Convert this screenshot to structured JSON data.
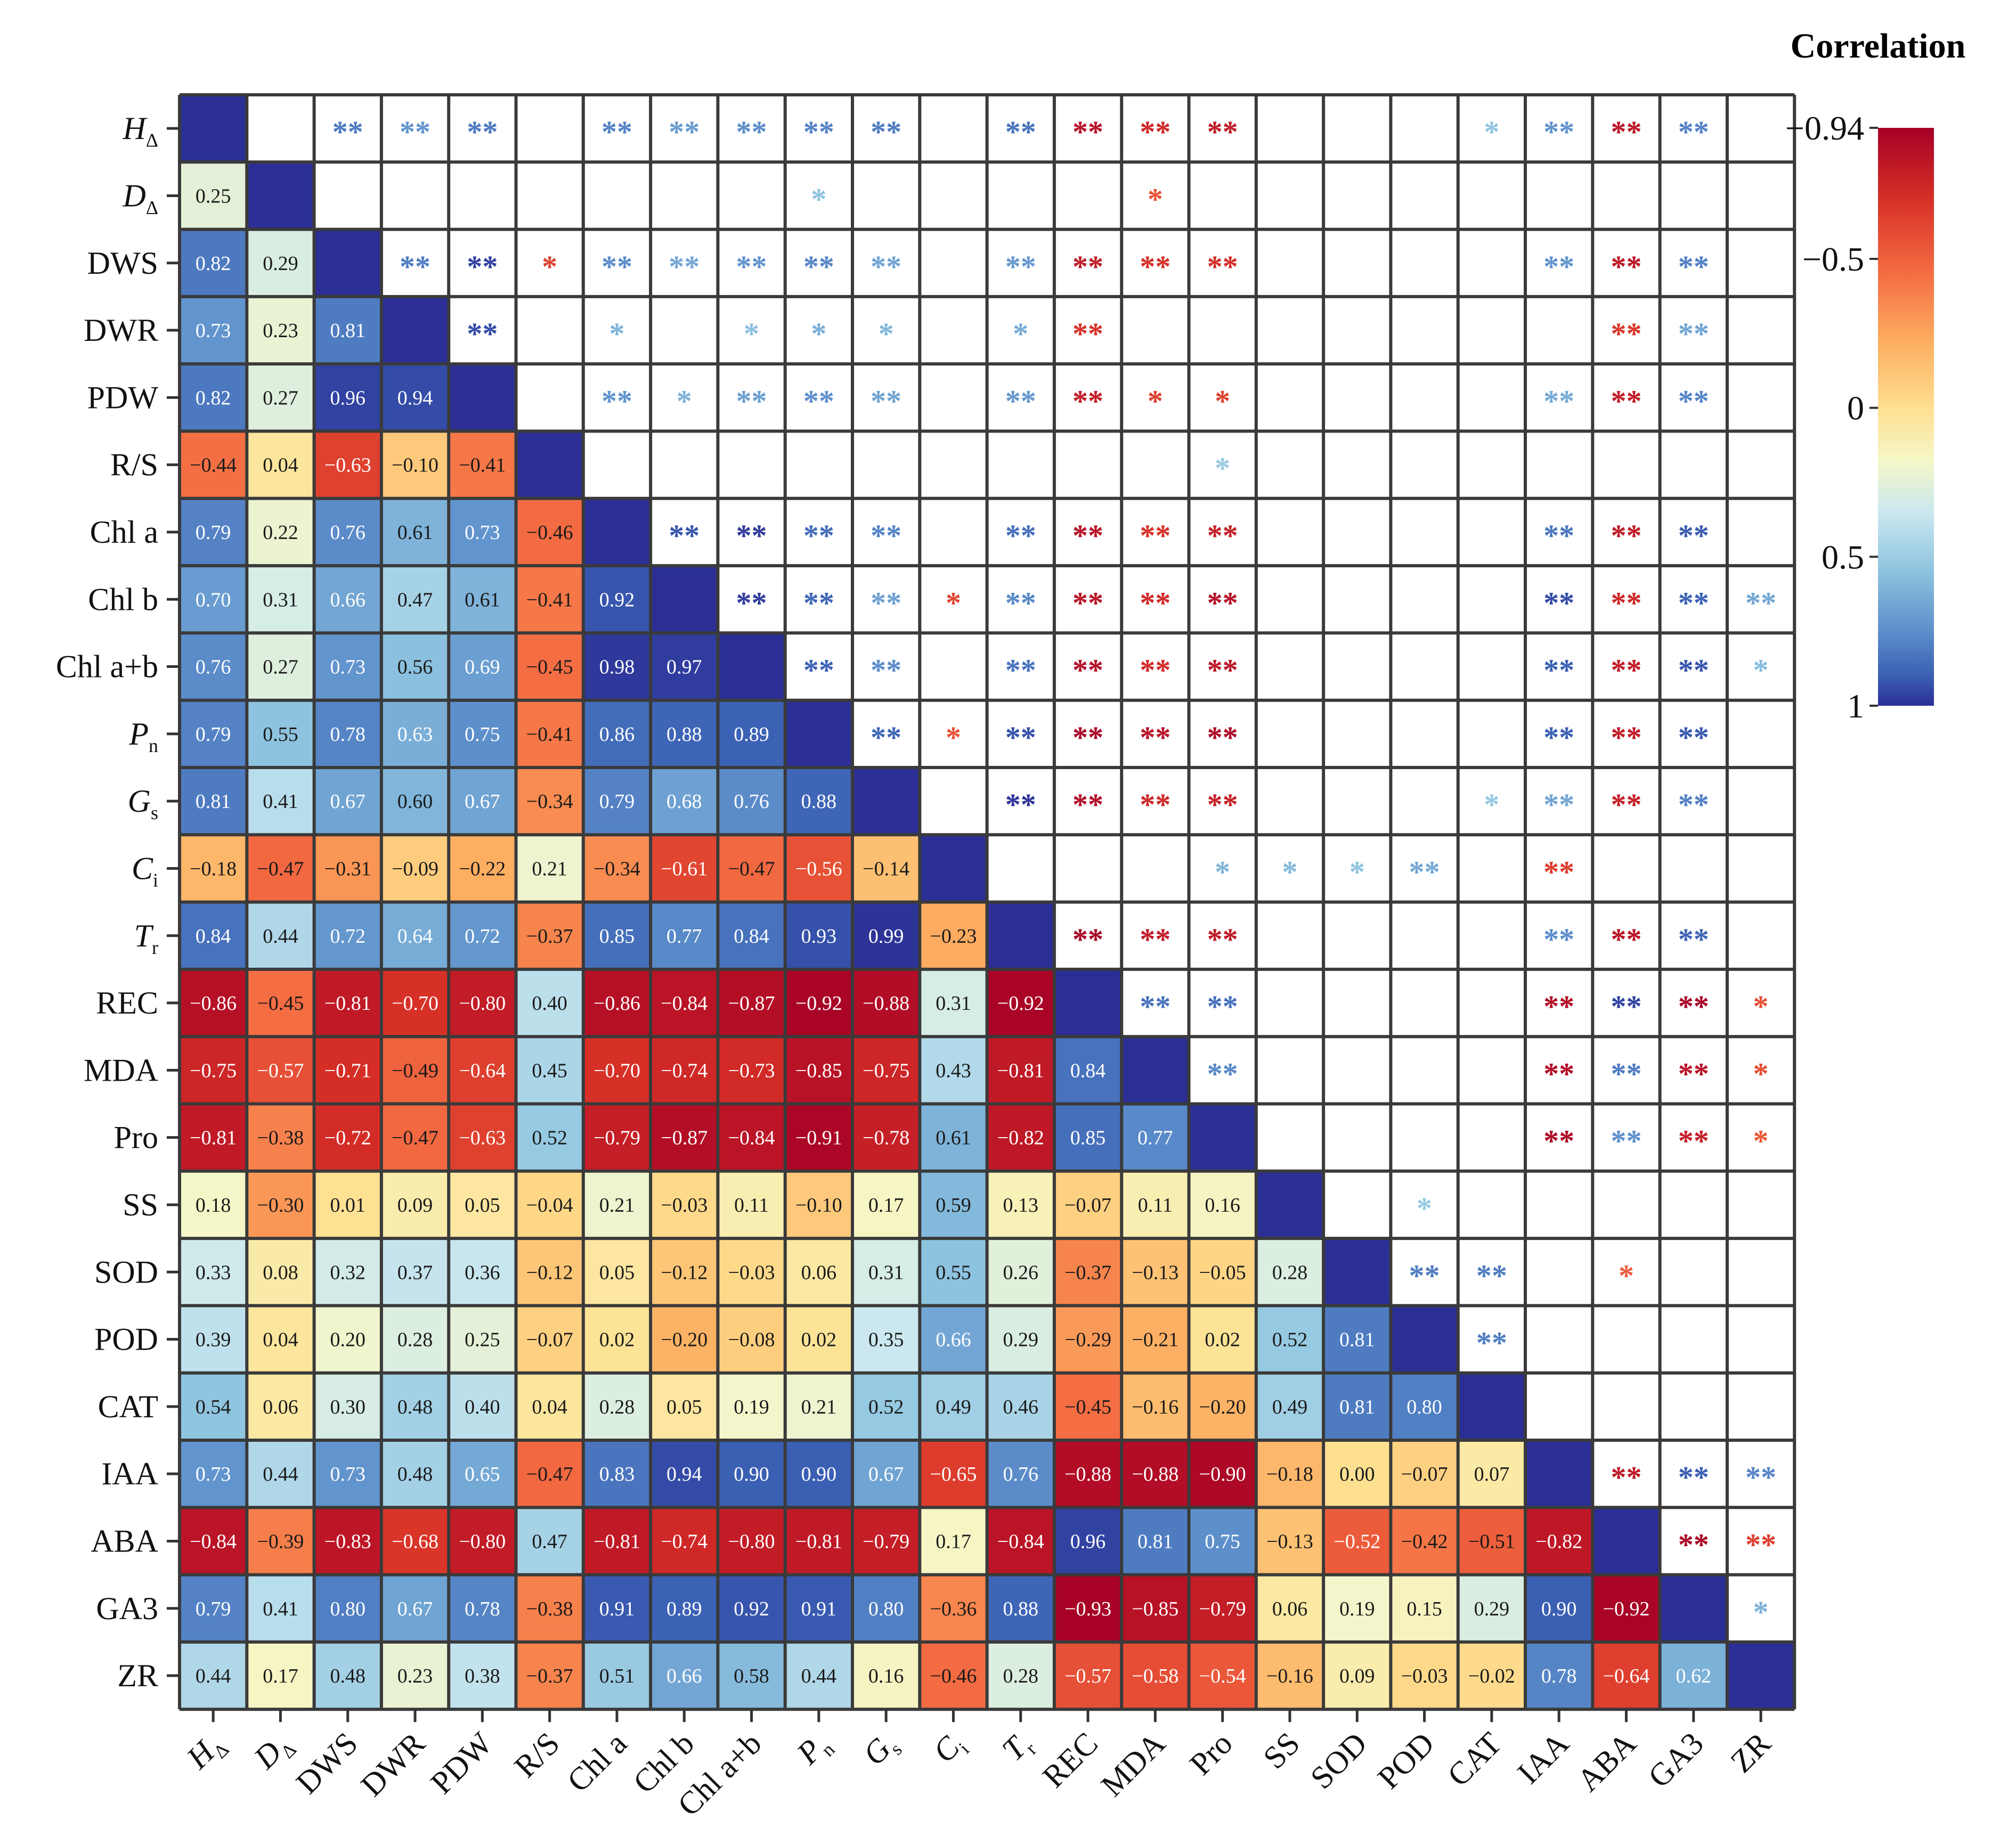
{
  "chart_data": {
    "type": "heatmap",
    "title": "",
    "variables": [
      {
        "base": "H",
        "sub": "Δ",
        "italic": true
      },
      {
        "base": "D",
        "sub": "Δ",
        "italic": true
      },
      {
        "base": "DWS",
        "sub": "",
        "italic": false
      },
      {
        "base": "DWR",
        "sub": "",
        "italic": false
      },
      {
        "base": "PDW",
        "sub": "",
        "italic": false
      },
      {
        "base": "R/S",
        "sub": "",
        "italic": false
      },
      {
        "base": "Chl a",
        "sub": "",
        "italic": false
      },
      {
        "base": "Chl b",
        "sub": "",
        "italic": false
      },
      {
        "base": "Chl a+b",
        "sub": "",
        "italic": false
      },
      {
        "base": "P",
        "sub": "n",
        "italic": true
      },
      {
        "base": "G",
        "sub": "s",
        "italic": true
      },
      {
        "base": "C",
        "sub": "i",
        "italic": true
      },
      {
        "base": "T",
        "sub": "r",
        "italic": true
      },
      {
        "base": "REC",
        "sub": "",
        "italic": false
      },
      {
        "base": "MDA",
        "sub": "",
        "italic": false
      },
      {
        "base": "Pro",
        "sub": "",
        "italic": false
      },
      {
        "base": "SS",
        "sub": "",
        "italic": false
      },
      {
        "base": "SOD",
        "sub": "",
        "italic": false
      },
      {
        "base": "POD",
        "sub": "",
        "italic": false
      },
      {
        "base": "CAT",
        "sub": "",
        "italic": false
      },
      {
        "base": "IAA",
        "sub": "",
        "italic": false
      },
      {
        "base": "ABA",
        "sub": "",
        "italic": false
      },
      {
        "base": "GA3",
        "sub": "",
        "italic": false
      },
      {
        "base": "ZR",
        "sub": "",
        "italic": false
      }
    ],
    "lower_values": [
      [],
      [
        0.25
      ],
      [
        0.82,
        0.29
      ],
      [
        0.73,
        0.23,
        0.81
      ],
      [
        0.82,
        0.27,
        0.96,
        0.94
      ],
      [
        -0.44,
        0.04,
        -0.63,
        -0.1,
        -0.41
      ],
      [
        0.79,
        0.22,
        0.76,
        0.61,
        0.73,
        -0.46
      ],
      [
        0.7,
        0.31,
        0.66,
        0.47,
        0.61,
        -0.41,
        0.92
      ],
      [
        0.76,
        0.27,
        0.73,
        0.56,
        0.69,
        -0.45,
        0.98,
        0.97
      ],
      [
        0.79,
        0.55,
        0.78,
        0.63,
        0.75,
        -0.41,
        0.86,
        0.88,
        0.89
      ],
      [
        0.81,
        0.41,
        0.67,
        0.6,
        0.67,
        -0.34,
        0.79,
        0.68,
        0.76,
        0.88
      ],
      [
        -0.18,
        -0.47,
        -0.31,
        -0.09,
        -0.22,
        0.21,
        -0.34,
        -0.61,
        -0.47,
        -0.56,
        -0.14
      ],
      [
        0.84,
        0.44,
        0.72,
        0.64,
        0.72,
        -0.37,
        0.85,
        0.77,
        0.84,
        0.93,
        0.99,
        -0.23
      ],
      [
        -0.86,
        -0.45,
        -0.81,
        -0.7,
        -0.8,
        0.4,
        -0.86,
        -0.84,
        -0.87,
        -0.92,
        -0.88,
        0.31,
        -0.92
      ],
      [
        -0.75,
        -0.57,
        -0.71,
        -0.49,
        -0.64,
        0.45,
        -0.7,
        -0.74,
        -0.73,
        -0.85,
        -0.75,
        0.43,
        -0.81,
        0.84
      ],
      [
        -0.81,
        -0.38,
        -0.72,
        -0.47,
        -0.63,
        0.52,
        -0.79,
        -0.87,
        -0.84,
        -0.91,
        -0.78,
        0.61,
        -0.82,
        0.85,
        0.77
      ],
      [
        0.18,
        -0.3,
        0.01,
        0.09,
        0.05,
        -0.04,
        0.21,
        -0.03,
        0.11,
        -0.1,
        0.17,
        0.59,
        0.13,
        -0.07,
        0.11,
        0.16
      ],
      [
        0.33,
        0.08,
        0.32,
        0.37,
        0.36,
        -0.12,
        0.05,
        -0.12,
        -0.03,
        0.06,
        0.31,
        0.55,
        0.26,
        -0.37,
        -0.13,
        -0.05,
        0.28
      ],
      [
        0.39,
        0.04,
        0.2,
        0.28,
        0.25,
        -0.07,
        0.02,
        -0.2,
        -0.08,
        0.02,
        0.35,
        0.66,
        0.29,
        -0.29,
        -0.21,
        0.02,
        0.52,
        0.81
      ],
      [
        0.54,
        0.06,
        0.3,
        0.48,
        0.4,
        0.04,
        0.28,
        0.05,
        0.19,
        0.21,
        0.52,
        0.49,
        0.46,
        -0.45,
        -0.16,
        -0.2,
        0.49,
        0.81,
        0.8
      ],
      [
        0.73,
        0.44,
        0.73,
        0.48,
        0.65,
        -0.47,
        0.83,
        0.94,
        0.9,
        0.9,
        0.67,
        -0.65,
        0.76,
        -0.88,
        -0.88,
        -0.9,
        -0.18,
        0.0,
        -0.07,
        0.07
      ],
      [
        -0.84,
        -0.39,
        -0.83,
        -0.68,
        -0.8,
        0.47,
        -0.81,
        -0.74,
        -0.8,
        -0.81,
        -0.79,
        0.17,
        -0.84,
        0.96,
        0.81,
        0.75,
        -0.13,
        -0.52,
        -0.42,
        -0.51,
        -0.82
      ],
      [
        0.79,
        0.41,
        0.8,
        0.67,
        0.78,
        -0.38,
        0.91,
        0.89,
        0.92,
        0.91,
        0.8,
        -0.36,
        0.88,
        -0.93,
        -0.85,
        -0.79,
        0.06,
        0.19,
        0.15,
        0.29,
        0.9,
        -0.92
      ],
      [
        0.44,
        0.17,
        0.48,
        0.23,
        0.38,
        -0.37,
        0.51,
        0.66,
        0.58,
        0.44,
        0.16,
        -0.46,
        0.28,
        -0.57,
        -0.58,
        -0.54,
        -0.16,
        0.09,
        -0.03,
        -0.02,
        0.78,
        -0.64,
        0.62
      ]
    ],
    "significance_upper": [
      {
        "row": 0,
        "col": 2,
        "mark": "**"
      },
      {
        "row": 0,
        "col": 3,
        "mark": "**"
      },
      {
        "row": 0,
        "col": 4,
        "mark": "**"
      },
      {
        "row": 0,
        "col": 6,
        "mark": "**"
      },
      {
        "row": 0,
        "col": 7,
        "mark": "**"
      },
      {
        "row": 0,
        "col": 8,
        "mark": "**"
      },
      {
        "row": 0,
        "col": 9,
        "mark": "**"
      },
      {
        "row": 0,
        "col": 10,
        "mark": "**"
      },
      {
        "row": 0,
        "col": 12,
        "mark": "**"
      },
      {
        "row": 0,
        "col": 13,
        "mark": "**"
      },
      {
        "row": 0,
        "col": 14,
        "mark": "**"
      },
      {
        "row": 0,
        "col": 15,
        "mark": "**"
      },
      {
        "row": 0,
        "col": 19,
        "mark": "*"
      },
      {
        "row": 0,
        "col": 20,
        "mark": "**"
      },
      {
        "row": 0,
        "col": 21,
        "mark": "**"
      },
      {
        "row": 0,
        "col": 22,
        "mark": "**"
      },
      {
        "row": 1,
        "col": 9,
        "mark": "*"
      },
      {
        "row": 1,
        "col": 14,
        "mark": "*"
      },
      {
        "row": 2,
        "col": 3,
        "mark": "**"
      },
      {
        "row": 2,
        "col": 4,
        "mark": "**"
      },
      {
        "row": 2,
        "col": 5,
        "mark": "*"
      },
      {
        "row": 2,
        "col": 6,
        "mark": "**"
      },
      {
        "row": 2,
        "col": 7,
        "mark": "**"
      },
      {
        "row": 2,
        "col": 8,
        "mark": "**"
      },
      {
        "row": 2,
        "col": 9,
        "mark": "**"
      },
      {
        "row": 2,
        "col": 10,
        "mark": "**"
      },
      {
        "row": 2,
        "col": 12,
        "mark": "**"
      },
      {
        "row": 2,
        "col": 13,
        "mark": "**"
      },
      {
        "row": 2,
        "col": 14,
        "mark": "**"
      },
      {
        "row": 2,
        "col": 15,
        "mark": "**"
      },
      {
        "row": 2,
        "col": 20,
        "mark": "**"
      },
      {
        "row": 2,
        "col": 21,
        "mark": "**"
      },
      {
        "row": 2,
        "col": 22,
        "mark": "**"
      },
      {
        "row": 3,
        "col": 4,
        "mark": "**"
      },
      {
        "row": 3,
        "col": 6,
        "mark": "*"
      },
      {
        "row": 3,
        "col": 8,
        "mark": "*"
      },
      {
        "row": 3,
        "col": 9,
        "mark": "*"
      },
      {
        "row": 3,
        "col": 10,
        "mark": "*"
      },
      {
        "row": 3,
        "col": 12,
        "mark": "*"
      },
      {
        "row": 3,
        "col": 13,
        "mark": "**"
      },
      {
        "row": 3,
        "col": 21,
        "mark": "**"
      },
      {
        "row": 3,
        "col": 22,
        "mark": "**"
      },
      {
        "row": 4,
        "col": 6,
        "mark": "**"
      },
      {
        "row": 4,
        "col": 7,
        "mark": "*"
      },
      {
        "row": 4,
        "col": 8,
        "mark": "**"
      },
      {
        "row": 4,
        "col": 9,
        "mark": "**"
      },
      {
        "row": 4,
        "col": 10,
        "mark": "**"
      },
      {
        "row": 4,
        "col": 12,
        "mark": "**"
      },
      {
        "row": 4,
        "col": 13,
        "mark": "**"
      },
      {
        "row": 4,
        "col": 14,
        "mark": "*"
      },
      {
        "row": 4,
        "col": 15,
        "mark": "*"
      },
      {
        "row": 4,
        "col": 20,
        "mark": "**"
      },
      {
        "row": 4,
        "col": 21,
        "mark": "**"
      },
      {
        "row": 4,
        "col": 22,
        "mark": "**"
      },
      {
        "row": 5,
        "col": 15,
        "mark": "*"
      },
      {
        "row": 6,
        "col": 7,
        "mark": "**"
      },
      {
        "row": 6,
        "col": 8,
        "mark": "**"
      },
      {
        "row": 6,
        "col": 9,
        "mark": "**"
      },
      {
        "row": 6,
        "col": 10,
        "mark": "**"
      },
      {
        "row": 6,
        "col": 12,
        "mark": "**"
      },
      {
        "row": 6,
        "col": 13,
        "mark": "**"
      },
      {
        "row": 6,
        "col": 14,
        "mark": "**"
      },
      {
        "row": 6,
        "col": 15,
        "mark": "**"
      },
      {
        "row": 6,
        "col": 20,
        "mark": "**"
      },
      {
        "row": 6,
        "col": 21,
        "mark": "**"
      },
      {
        "row": 6,
        "col": 22,
        "mark": "**"
      },
      {
        "row": 7,
        "col": 8,
        "mark": "**"
      },
      {
        "row": 7,
        "col": 9,
        "mark": "**"
      },
      {
        "row": 7,
        "col": 10,
        "mark": "**"
      },
      {
        "row": 7,
        "col": 11,
        "mark": "*"
      },
      {
        "row": 7,
        "col": 12,
        "mark": "**"
      },
      {
        "row": 7,
        "col": 13,
        "mark": "**"
      },
      {
        "row": 7,
        "col": 14,
        "mark": "**"
      },
      {
        "row": 7,
        "col": 15,
        "mark": "**"
      },
      {
        "row": 7,
        "col": 20,
        "mark": "**"
      },
      {
        "row": 7,
        "col": 21,
        "mark": "**"
      },
      {
        "row": 7,
        "col": 22,
        "mark": "**"
      },
      {
        "row": 7,
        "col": 23,
        "mark": "**"
      },
      {
        "row": 8,
        "col": 9,
        "mark": "**"
      },
      {
        "row": 8,
        "col": 10,
        "mark": "**"
      },
      {
        "row": 8,
        "col": 12,
        "mark": "**"
      },
      {
        "row": 8,
        "col": 13,
        "mark": "**"
      },
      {
        "row": 8,
        "col": 14,
        "mark": "**"
      },
      {
        "row": 8,
        "col": 15,
        "mark": "**"
      },
      {
        "row": 8,
        "col": 20,
        "mark": "**"
      },
      {
        "row": 8,
        "col": 21,
        "mark": "**"
      },
      {
        "row": 8,
        "col": 22,
        "mark": "**"
      },
      {
        "row": 8,
        "col": 23,
        "mark": "*"
      },
      {
        "row": 9,
        "col": 10,
        "mark": "**"
      },
      {
        "row": 9,
        "col": 11,
        "mark": "*"
      },
      {
        "row": 9,
        "col": 12,
        "mark": "**"
      },
      {
        "row": 9,
        "col": 13,
        "mark": "**"
      },
      {
        "row": 9,
        "col": 14,
        "mark": "**"
      },
      {
        "row": 9,
        "col": 15,
        "mark": "**"
      },
      {
        "row": 9,
        "col": 20,
        "mark": "**"
      },
      {
        "row": 9,
        "col": 21,
        "mark": "**"
      },
      {
        "row": 9,
        "col": 22,
        "mark": "**"
      },
      {
        "row": 10,
        "col": 12,
        "mark": "**"
      },
      {
        "row": 10,
        "col": 13,
        "mark": "**"
      },
      {
        "row": 10,
        "col": 14,
        "mark": "**"
      },
      {
        "row": 10,
        "col": 15,
        "mark": "**"
      },
      {
        "row": 10,
        "col": 19,
        "mark": "*"
      },
      {
        "row": 10,
        "col": 20,
        "mark": "**"
      },
      {
        "row": 10,
        "col": 21,
        "mark": "**"
      },
      {
        "row": 10,
        "col": 22,
        "mark": "**"
      },
      {
        "row": 11,
        "col": 15,
        "mark": "*"
      },
      {
        "row": 11,
        "col": 16,
        "mark": "*"
      },
      {
        "row": 11,
        "col": 17,
        "mark": "*"
      },
      {
        "row": 11,
        "col": 18,
        "mark": "**"
      },
      {
        "row": 11,
        "col": 20,
        "mark": "**"
      },
      {
        "row": 12,
        "col": 13,
        "mark": "**"
      },
      {
        "row": 12,
        "col": 14,
        "mark": "**"
      },
      {
        "row": 12,
        "col": 15,
        "mark": "**"
      },
      {
        "row": 12,
        "col": 20,
        "mark": "**"
      },
      {
        "row": 12,
        "col": 21,
        "mark": "**"
      },
      {
        "row": 12,
        "col": 22,
        "mark": "**"
      },
      {
        "row": 13,
        "col": 14,
        "mark": "**"
      },
      {
        "row": 13,
        "col": 15,
        "mark": "**"
      },
      {
        "row": 13,
        "col": 20,
        "mark": "**"
      },
      {
        "row": 13,
        "col": 21,
        "mark": "**"
      },
      {
        "row": 13,
        "col": 22,
        "mark": "**"
      },
      {
        "row": 13,
        "col": 23,
        "mark": "*"
      },
      {
        "row": 14,
        "col": 15,
        "mark": "**"
      },
      {
        "row": 14,
        "col": 20,
        "mark": "**"
      },
      {
        "row": 14,
        "col": 21,
        "mark": "**"
      },
      {
        "row": 14,
        "col": 22,
        "mark": "**"
      },
      {
        "row": 14,
        "col": 23,
        "mark": "*"
      },
      {
        "row": 15,
        "col": 20,
        "mark": "**"
      },
      {
        "row": 15,
        "col": 21,
        "mark": "**"
      },
      {
        "row": 15,
        "col": 22,
        "mark": "**"
      },
      {
        "row": 15,
        "col": 23,
        "mark": "*"
      },
      {
        "row": 16,
        "col": 18,
        "mark": "*"
      },
      {
        "row": 17,
        "col": 18,
        "mark": "**"
      },
      {
        "row": 17,
        "col": 19,
        "mark": "**"
      },
      {
        "row": 17,
        "col": 21,
        "mark": "*"
      },
      {
        "row": 18,
        "col": 19,
        "mark": "**"
      },
      {
        "row": 20,
        "col": 21,
        "mark": "**"
      },
      {
        "row": 20,
        "col": 22,
        "mark": "**"
      },
      {
        "row": 20,
        "col": 23,
        "mark": "**"
      },
      {
        "row": 21,
        "col": 22,
        "mark": "**"
      },
      {
        "row": 21,
        "col": 23,
        "mark": "**"
      },
      {
        "row": 22,
        "col": 23,
        "mark": "*"
      }
    ],
    "legend": {
      "title": "Correlation",
      "ticks": [
        {
          "label": "−0.94",
          "value": -0.94
        },
        {
          "label": "−0.5",
          "value": -0.5
        },
        {
          "label": "0",
          "value": 0
        },
        {
          "label": "0.5",
          "value": 0.5
        },
        {
          "label": "1",
          "value": 1
        }
      ],
      "range": [
        -0.94,
        1
      ],
      "placement": "right"
    },
    "colormap": [
      {
        "v": -0.94,
        "color": "#a50026"
      },
      {
        "v": -0.7,
        "color": "#d73027"
      },
      {
        "v": -0.45,
        "color": "#f46d43"
      },
      {
        "v": -0.22,
        "color": "#fdae61"
      },
      {
        "v": 0.0,
        "color": "#fee090"
      },
      {
        "v": 0.18,
        "color": "#f5f7c8"
      },
      {
        "v": 0.35,
        "color": "#cbe8f0"
      },
      {
        "v": 0.55,
        "color": "#8dc3df"
      },
      {
        "v": 0.75,
        "color": "#5d8fcb"
      },
      {
        "v": 0.9,
        "color": "#3a5fb3"
      },
      {
        "v": 1.0,
        "color": "#2b2f95"
      }
    ]
  }
}
